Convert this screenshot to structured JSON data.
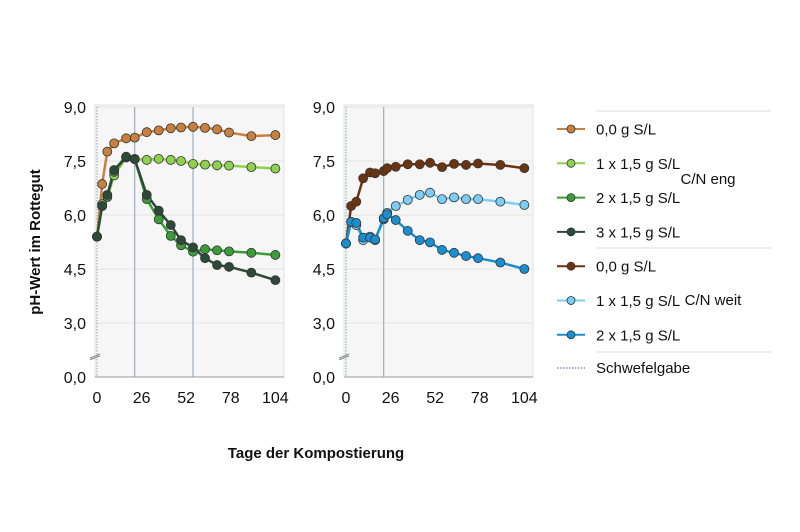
{
  "chart_data": {
    "type": "line",
    "ylabel": "pH-Wert im Rottegut",
    "xlabel": "Tage der Kompostierung",
    "ylim": [
      0,
      9
    ],
    "y_ticks": [
      "0,0",
      "3,0",
      "4,5",
      "6,0",
      "7,5",
      "9,0"
    ],
    "y_tick_values": [
      0,
      3,
      4.5,
      6,
      7.5,
      9
    ],
    "y_axis_break": true,
    "x_ticks": [
      "0",
      "26",
      "52",
      "78",
      "104"
    ],
    "x_tick_values": [
      0,
      26,
      52,
      78,
      104
    ],
    "xlim": [
      0,
      108
    ],
    "grid": "horizontal",
    "legend_placement": "right",
    "panels": [
      {
        "group": "C/N eng",
        "sulfur_days": [
          0,
          22,
          56
        ],
        "x": [
          0,
          3,
          6,
          10,
          17,
          22,
          29,
          36,
          43,
          49,
          56,
          63,
          70,
          77,
          90,
          104
        ],
        "series": [
          {
            "name": "0,0 g S/L",
            "color": "#c8803f",
            "values": [
              5.4,
              6.86,
              7.76,
              7.99,
              8.13,
              8.15,
              8.3,
              8.35,
              8.41,
              8.43,
              8.45,
              8.42,
              8.38,
              8.29,
              8.19,
              8.22
            ]
          },
          {
            "name": "1 x 1,5 g S/L",
            "color": "#8fd14f",
            "values": [
              5.4,
              6.3,
              6.5,
              7.1,
              7.6,
              7.56,
              7.53,
              7.56,
              7.53,
              7.5,
              7.42,
              7.4,
              7.38,
              7.37,
              7.33,
              7.29
            ]
          },
          {
            "name": "2 x 1,5 g S/L",
            "color": "#3c9c3a",
            "values": [
              5.4,
              6.25,
              6.5,
              7.2,
              7.6,
              7.55,
              6.44,
              5.88,
              5.42,
              5.16,
              4.98,
              5.05,
              5.02,
              4.99,
              4.95,
              4.89
            ]
          },
          {
            "name": "3 x 1,5 g S/L",
            "color": "#2d4a38",
            "values": [
              5.4,
              6.25,
              6.56,
              7.25,
              7.62,
              7.55,
              6.56,
              6.12,
              5.72,
              5.3,
              5.1,
              4.8,
              4.61,
              4.56,
              4.4,
              4.19
            ]
          }
        ]
      },
      {
        "group": "C/N weit",
        "sulfur_days": [
          0,
          22
        ],
        "x": [
          0,
          3,
          6,
          10,
          14,
          17,
          22,
          24,
          29,
          36,
          43,
          49,
          56,
          63,
          70,
          77,
          90,
          104
        ],
        "series": [
          {
            "name": "0,0 g S/L",
            "color": "#6b3410",
            "values": [
              5.21,
              6.25,
              6.37,
              7.02,
              7.18,
              7.16,
              7.22,
              7.3,
              7.34,
              7.41,
              7.41,
              7.45,
              7.33,
              7.42,
              7.39,
              7.43,
              7.39,
              7.3
            ]
          },
          {
            "name": "1 x 1,5 g S/L",
            "color": "#7dccf2",
            "values": [
              5.21,
              5.81,
              5.72,
              5.3,
              5.4,
              5.3,
              5.88,
              6.06,
              6.25,
              6.42,
              6.56,
              6.62,
              6.44,
              6.49,
              6.44,
              6.44,
              6.37,
              6.28
            ]
          },
          {
            "name": "2 x 1,5 g S/L",
            "color": "#1a8fd0",
            "values": [
              5.21,
              5.81,
              5.78,
              5.37,
              5.37,
              5.32,
              5.91,
              6.02,
              5.86,
              5.56,
              5.3,
              5.24,
              5.03,
              4.95,
              4.86,
              4.8,
              4.68,
              4.5
            ]
          }
        ]
      }
    ],
    "legend": {
      "groups": [
        "C/N eng",
        "C/N weit"
      ],
      "sulfur_label": "Schwefelgabe"
    }
  }
}
